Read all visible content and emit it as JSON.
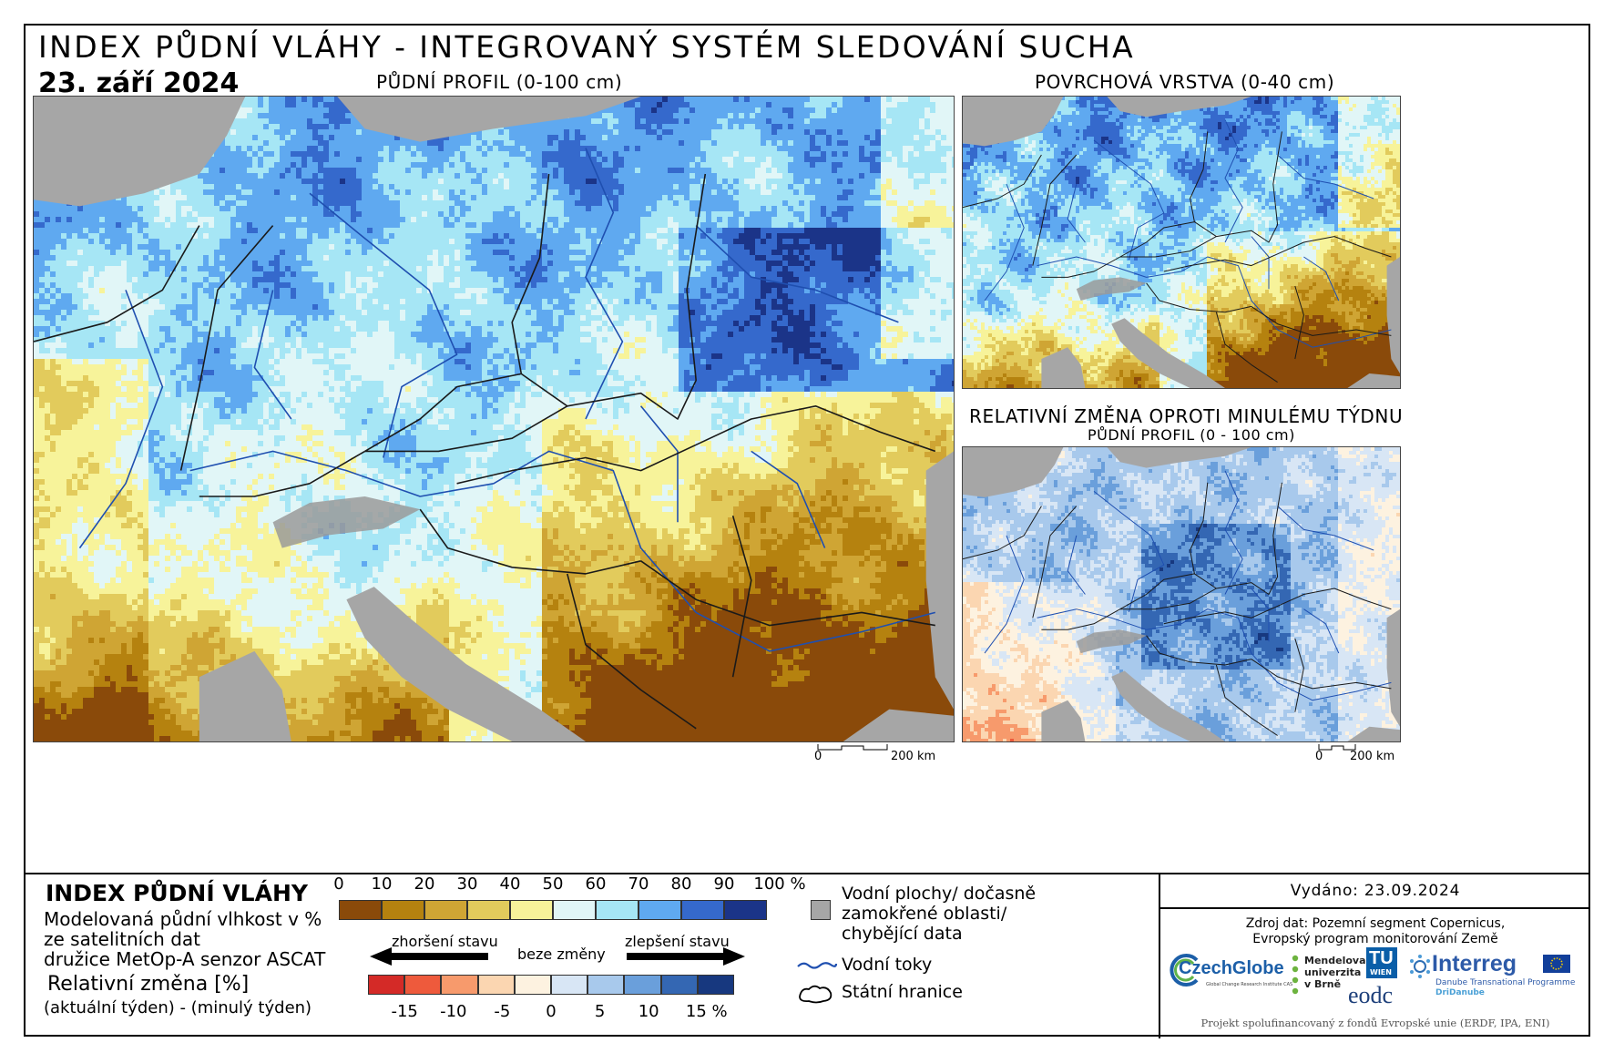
{
  "header": {
    "title": "INDEX PŮDNÍ VLÁHY - INTEGROVANÝ SYSTÉM SLEDOVÁNÍ SUCHA",
    "date": "23. září 2024"
  },
  "maps": {
    "main_title": "PŮDNÍ PROFIL (0-100 cm)",
    "surface_title": "POVRCHOVÁ VRSTVA (0-40 cm)",
    "change_title": "RELATIVNÍ ZMĚNA OPROTI MINULÉMU TÝDNU",
    "change_subtitle": "PŮDNÍ PROFIL (0 - 100 cm)",
    "scale_main": {
      "zero": "0",
      "max": "200 km"
    },
    "scale_small": {
      "zero": "0",
      "max": "200 km"
    }
  },
  "legend": {
    "title": "INDEX PŮDNÍ VLÁHY",
    "desc1": "Modelovaná půdní vlhkost v %",
    "desc2": "ze satelitních dat",
    "desc3": "družice MetOp-A senzor ASCAT",
    "change_title": "Relativní změna [%]",
    "change_desc": "(aktuální týden) - (minulý týden)",
    "index_ticks": [
      "0",
      "10",
      "20",
      "30",
      "40",
      "50",
      "60",
      "70",
      "80",
      "90",
      "100 %"
    ],
    "index_colors": [
      "#8a4a0a",
      "#b5820f",
      "#cfa534",
      "#e2cb5c",
      "#f7f39a",
      "#e1f6f7",
      "#a6e6f5",
      "#5fa9f0",
      "#3569cc",
      "#1b3488"
    ],
    "arrow_worse": "zhoršení stavu",
    "arrow_none": "beze změny",
    "arrow_better": "zlepšení stavu",
    "change_ticks": [
      "-15",
      "-10",
      "-5",
      "0",
      "5",
      "10",
      "15 %"
    ],
    "change_colors": [
      "#d42a27",
      "#ee5a3c",
      "#f79a6c",
      "#fbd6b1",
      "#fdf2e0",
      "#d8e6f5",
      "#a8c9ec",
      "#6a9fdb",
      "#3467b3",
      "#17387f"
    ],
    "water_label": [
      "Vodní plochy/ dočasně",
      "zamokřené oblasti/",
      "chybějící data"
    ],
    "rivers_label": "Vodní toky",
    "borders_label": "Státní hranice"
  },
  "credits": {
    "issued": "Vydáno: 23.09.2024",
    "source1": "Zdroj dat: Pozemní segment Copernicus,",
    "source2": "Evropský program monitorování Země",
    "logos": {
      "czechglobe": "CzechGlobe",
      "czechglobe_sub": "Global Change Research Institute CAS",
      "mendelu1": "Mendelova",
      "mendelu2": "univerzita",
      "mendelu3": "v Brně",
      "tu": "TU",
      "tu_sub": "WIEN",
      "eodc": "eodc",
      "interreg": "Interreg",
      "interreg_sub1": "Danube Transnational Programme",
      "interreg_sub2": "DriDanube"
    },
    "footer": "Projekt spolufinancovaný z fondů Evropské unie (ERDF, IPA, ENI)"
  },
  "colors": {
    "land_grey": "#a6a6a6",
    "river_blue": "#1f4fb0",
    "border_black": "#1a1a1a"
  }
}
